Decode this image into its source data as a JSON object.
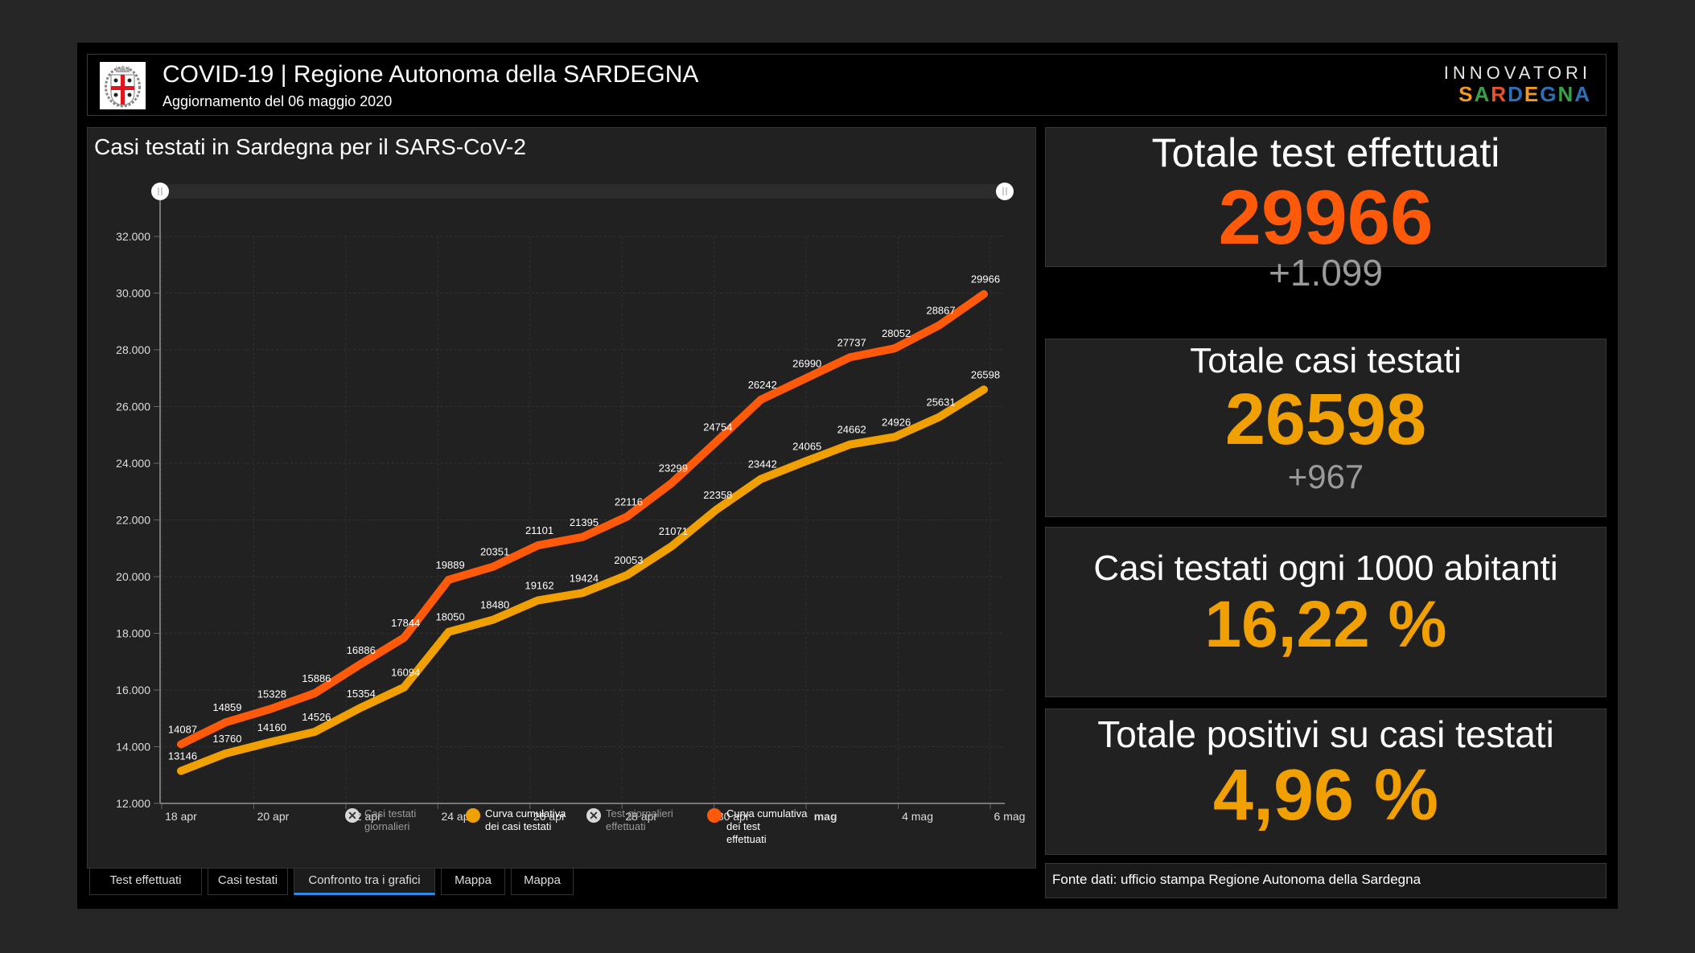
{
  "header": {
    "title": "COVID-19 | Regione Autonoma della SARDEGNA",
    "subtitle": "Aggiornamento del 06 maggio 2020",
    "logo_icon": "sardinia-coat-of-arms-icon",
    "brand_top": "INNOVATORI",
    "brand_bottom_letters": [
      "S",
      "A",
      "R",
      "D",
      "E",
      "G",
      "N",
      "A"
    ],
    "brand_colors": [
      "#f39a1e",
      "#3aa04a",
      "#e8532b",
      "#2f6fb6",
      "#f39a1e",
      "#2f6fb6",
      "#3aa04a",
      "#2f6fb6"
    ]
  },
  "chart_panel": {
    "title": "Casi testati in Sardegna per il SARS-CoV-2"
  },
  "chart_data": {
    "type": "line",
    "title": "Casi testati in Sardegna per il SARS-CoV-2",
    "xlabel": "",
    "ylabel": "",
    "x": [
      "18 apr",
      "19 apr",
      "20 apr",
      "21 apr",
      "22 apr",
      "23 apr",
      "24 apr",
      "25 apr",
      "26 apr",
      "27 apr",
      "28 apr",
      "29 apr",
      "30 apr",
      "1 mag",
      "2 mag",
      "3 mag",
      "4 mag",
      "5 mag",
      "6 mag"
    ],
    "x_tick_labels": [
      "18 apr",
      "20 apr",
      "22 apr",
      "24 apr",
      "26 apr",
      "28 apr",
      "30 apr",
      "mag",
      "4 mag",
      "6 mag"
    ],
    "x_tick_indices": [
      0,
      2,
      4,
      6,
      8,
      10,
      12,
      14,
      16,
      18
    ],
    "bold_tick": "mag",
    "y_ticks": [
      12000,
      14000,
      16000,
      18000,
      20000,
      22000,
      24000,
      26000,
      28000,
      30000,
      32000
    ],
    "y_tick_labels": [
      "12.000",
      "14.000",
      "16.000",
      "18.000",
      "20.000",
      "22.000",
      "24.000",
      "26.000",
      "28.000",
      "30.000",
      "32.000"
    ],
    "ylim": [
      12000,
      32000
    ],
    "grid": true,
    "series": [
      {
        "name": "Curva cumulativa dei test effettuati",
        "color": "#ff5a0a",
        "values": [
          14087,
          14859,
          15328,
          15886,
          16886,
          17844,
          19889,
          20351,
          21101,
          21395,
          22116,
          23299,
          24754,
          26242,
          26990,
          27737,
          28052,
          28867,
          29966
        ]
      },
      {
        "name": "Curva cumulativa dei casi testati",
        "color": "#f0a000",
        "values": [
          13146,
          13760,
          14160,
          14526,
          15354,
          16094,
          18050,
          18480,
          19162,
          19424,
          20053,
          21071,
          22358,
          23442,
          24065,
          24662,
          24926,
          25631,
          26598
        ]
      }
    ],
    "legend": [
      {
        "label_lines": [
          "Casi testati",
          "giornalieri"
        ],
        "visible": false,
        "color": "#d8d8d8"
      },
      {
        "label_lines": [
          "Curva cumulativa",
          "dei casi testati"
        ],
        "visible": true,
        "color": "#f0a000"
      },
      {
        "label_lines": [
          "Test giornalieri",
          "effettuati"
        ],
        "visible": false,
        "color": "#d8d8d8"
      },
      {
        "label_lines": [
          "Curva cumulativa",
          "dei test",
          "effettuati"
        ],
        "visible": true,
        "color": "#ff5a0a"
      }
    ],
    "legend_position": "bottom",
    "range_slider": {
      "start": 0.0,
      "end": 1.0
    }
  },
  "tabs": [
    {
      "label": "Test effettuati",
      "active": false
    },
    {
      "label": "Casi testati",
      "active": false
    },
    {
      "label": "Confronto tra i grafici",
      "active": true
    },
    {
      "label": "Mappa",
      "active": false
    },
    {
      "label": "Mappa",
      "active": false
    }
  ],
  "cards": [
    {
      "title": "Totale test effettuati",
      "value": "29966",
      "delta": "+1.099",
      "color": "#ff5a0a"
    },
    {
      "title": "Totale casi testati",
      "value": "26598",
      "delta": "+967",
      "color": "#f0a000"
    },
    {
      "title": "Casi testati ogni 1000 abitanti",
      "value": "16,22 %",
      "color": "#f0a000"
    },
    {
      "title": "Totale positivi su casi testati",
      "value": "4,96 %",
      "color": "#f0a000"
    }
  ],
  "source": "Fonte dati: ufficio stampa Regione Autonoma della Sardegna"
}
